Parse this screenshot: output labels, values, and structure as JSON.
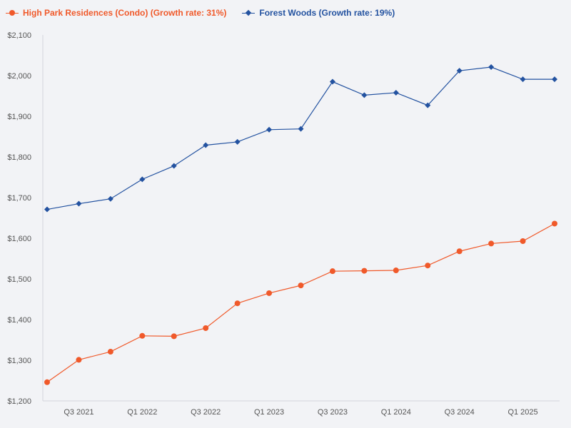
{
  "chart_data": {
    "type": "line",
    "title": "",
    "xlabel": "",
    "ylabel": "",
    "ylim": [
      1200,
      2100
    ],
    "yticks": [
      1200,
      1300,
      1400,
      1500,
      1600,
      1700,
      1800,
      1900,
      2000,
      2100
    ],
    "ytick_labels": [
      "$1,200",
      "$1,300",
      "$1,400",
      "$1,500",
      "$1,600",
      "$1,700",
      "$1,800",
      "$1,900",
      "$2,000",
      "$2,100"
    ],
    "categories": [
      "Q2 2021",
      "Q3 2021",
      "Q4 2021",
      "Q1 2022",
      "Q2 2022",
      "Q3 2022",
      "Q4 2022",
      "Q1 2023",
      "Q2 2023",
      "Q3 2023",
      "Q4 2023",
      "Q1 2024",
      "Q2 2024",
      "Q3 2024",
      "Q4 2024",
      "Q1 2025",
      "Q2 2025"
    ],
    "xtick_labels": [
      {
        "index": 1,
        "label": "Q3 2021"
      },
      {
        "index": 3,
        "label": "Q1 2022"
      },
      {
        "index": 5,
        "label": "Q3 2022"
      },
      {
        "index": 7,
        "label": "Q1 2023"
      },
      {
        "index": 9,
        "label": "Q3 2023"
      },
      {
        "index": 11,
        "label": "Q1 2024"
      },
      {
        "index": 13,
        "label": "Q3 2024"
      },
      {
        "index": 15,
        "label": "Q1 2025"
      }
    ],
    "grid": false,
    "legend_position": "top-left",
    "series": [
      {
        "name": "High Park Residences (Condo) (Growth rate: 31%)",
        "color": "#f0592a",
        "marker": "circle",
        "values": [
          1246,
          1301,
          1321,
          1360,
          1359,
          1379,
          1440,
          1465,
          1484,
          1519,
          1520,
          1521,
          1533,
          1568,
          1587,
          1593,
          1636
        ]
      },
      {
        "name": "Forest Woods (Growth rate: 19%)",
        "color": "#2352a0",
        "marker": "diamond",
        "values": [
          1671,
          1685,
          1697,
          1745,
          1778,
          1829,
          1837,
          1867,
          1869,
          1985,
          1952,
          1958,
          1927,
          2012,
          2021,
          1991,
          1991
        ]
      }
    ]
  }
}
